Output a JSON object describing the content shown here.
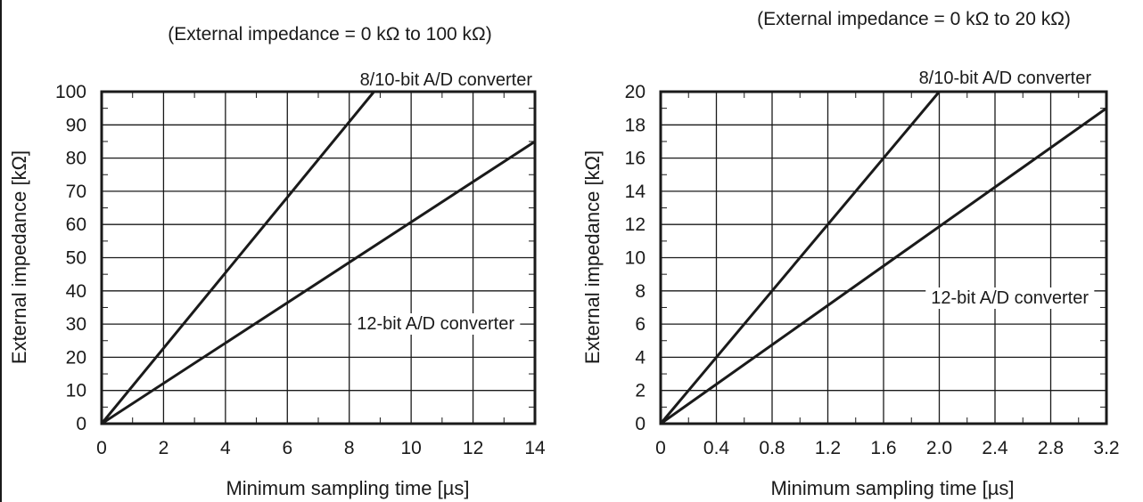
{
  "chart_data": [
    {
      "type": "line",
      "title": "(External impedance = 0 kΩ to 100 kΩ)",
      "xlabel": "Minimum sampling time [µs]",
      "ylabel": "External impedance [kΩ]",
      "xlim": [
        0,
        14
      ],
      "ylim": [
        0,
        100
      ],
      "x_ticks": [
        "0",
        "2",
        "4",
        "6",
        "8",
        "10",
        "12",
        "14"
      ],
      "y_ticks": [
        "0",
        "10",
        "20",
        "30",
        "40",
        "50",
        "60",
        "70",
        "80",
        "90",
        "100"
      ],
      "grid": true,
      "series": [
        {
          "name": "8/10-bit A/D converter",
          "x": [
            0,
            8.8
          ],
          "y": [
            0,
            100
          ]
        },
        {
          "name": "12-bit A/D converter",
          "x": [
            0,
            14
          ],
          "y": [
            0,
            85
          ]
        }
      ]
    },
    {
      "type": "line",
      "title": "(External impedance = 0 kΩ to 20 kΩ)",
      "xlabel": "Minimum sampling time [µs]",
      "ylabel": "External impedance [kΩ]",
      "xlim": [
        0,
        3.2
      ],
      "ylim": [
        0,
        20
      ],
      "x_ticks": [
        "0",
        "0.4",
        "0.8",
        "1.2",
        "1.6",
        "2.0",
        "2.4",
        "2.8",
        "3.2"
      ],
      "y_ticks": [
        "0",
        "2",
        "4",
        "6",
        "8",
        "10",
        "12",
        "14",
        "16",
        "18",
        "20"
      ],
      "grid": true,
      "series": [
        {
          "name": "8/10-bit A/D converter",
          "x": [
            0,
            2.0
          ],
          "y": [
            0,
            20
          ]
        },
        {
          "name": "12-bit A/D converter",
          "x": [
            0,
            3.2
          ],
          "y": [
            0,
            19
          ]
        }
      ]
    }
  ]
}
